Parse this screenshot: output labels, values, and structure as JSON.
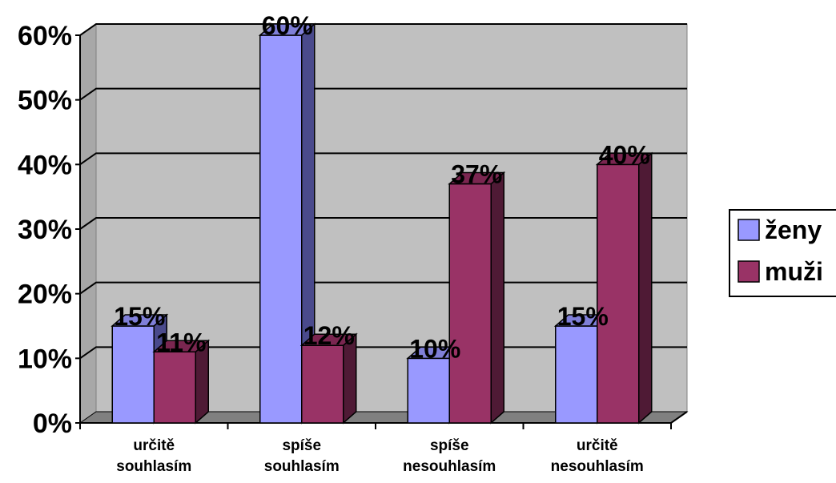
{
  "chart_data": {
    "type": "bar",
    "subtype": "3d-clustered-column",
    "title": "",
    "xlabel": "",
    "ylabel": "",
    "categories": [
      [
        "určitě",
        "souhlasím"
      ],
      [
        "spíše",
        "souhlasím"
      ],
      [
        "spíše",
        "nesouhlasím"
      ],
      [
        "určitě",
        "nesouhlasím"
      ]
    ],
    "series": [
      {
        "name": "ženy",
        "values": [
          15,
          60,
          10,
          15
        ],
        "labels": [
          "15%",
          "60%",
          "10%",
          "15%"
        ],
        "color": "#9999FF",
        "top_color": "#7F7FD8",
        "side_color": "#4A4A8C"
      },
      {
        "name": "muži",
        "values": [
          11,
          12,
          37,
          40
        ],
        "labels": [
          "11%",
          "12%",
          "37%",
          "40%"
        ],
        "color": "#993366",
        "top_color": "#7A2650",
        "side_color": "#4F1A35"
      }
    ],
    "y_ticks": [
      "0%",
      "10%",
      "20%",
      "30%",
      "40%",
      "50%",
      "60%"
    ],
    "ylim": [
      0,
      60
    ],
    "grid": true,
    "legend_position": "right",
    "plot_background": "#C0C0C0"
  }
}
